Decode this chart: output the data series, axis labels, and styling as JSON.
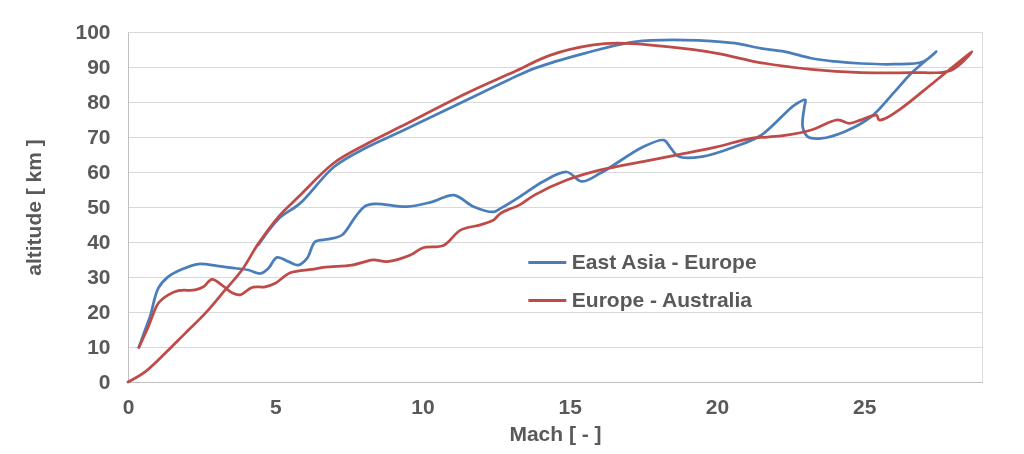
{
  "chart_data": {
    "type": "line",
    "xlabel": "Mach [ - ]",
    "ylabel": "altitude [ km ]",
    "xlim": [
      0,
      29
    ],
    "xticks": [
      0,
      5,
      10,
      15,
      20,
      25
    ],
    "ylim": [
      0,
      100
    ],
    "yticks": [
      0,
      10,
      20,
      30,
      40,
      50,
      60,
      70,
      80,
      90,
      100
    ],
    "grid": "y",
    "legend": "bottom right",
    "series": [
      {
        "name": "East Asia - Europe",
        "color": "#4a7ebb",
        "x": [
          4.43,
          5.11,
          5.85,
          7.0,
          8.1,
          9.25,
          11.5,
          13.2,
          13.8,
          15.5,
          17.2,
          18.9,
          20.6,
          21.5,
          22.3,
          23.2,
          24.0,
          24.9,
          26.0,
          27.0,
          27.45,
          26.6,
          26.03,
          25.24,
          24.33,
          23.54,
          23.08,
          22.91,
          22.97,
          23.0,
          22.63,
          21.5,
          20.6,
          19.5,
          18.7,
          18.4,
          18.2,
          17.5,
          16.05,
          15.4,
          14.9,
          14.1,
          13.3,
          12.65,
          12.42,
          11.74,
          11.06,
          10.3,
          9.48,
          8.4,
          8.06,
          7.72,
          7.27,
          6.81,
          6.36,
          6.08,
          5.79,
          5.45,
          5.06,
          4.77,
          4.49,
          4.09,
          3.64,
          3.07,
          2.39,
          1.83,
          1.37,
          1.03,
          0.75,
          0.58,
          0.37
        ],
        "values": [
          39.2,
          46.6,
          51.1,
          61.5,
          67,
          71.5,
          80.6,
          87.4,
          89.6,
          93.9,
          97.2,
          97.7,
          96.8,
          95.3,
          94.4,
          92.5,
          91.6,
          91.0,
          90.8,
          91.5,
          94.4,
          88.2,
          82.9,
          75.8,
          71.5,
          69.6,
          70.1,
          72.9,
          78.7,
          80.6,
          79.1,
          70.5,
          67.2,
          64.4,
          64.4,
          67.2,
          69.1,
          67.2,
          59.7,
          57.3,
          60.0,
          57.3,
          52.9,
          49.6,
          48.6,
          50.1,
          53.4,
          51.4,
          50.1,
          50.9,
          50.3,
          47.2,
          42,
          40.8,
          40.1,
          35.3,
          33.4,
          34.4,
          35.6,
          32.5,
          31.0,
          32.0,
          32.5,
          33.1,
          33.7,
          32.2,
          30.1,
          26.8,
          18.7,
          14.9,
          9.9
        ]
      },
      {
        "name": "Europe - Australia",
        "color": "#be4b48",
        "x": [
          0,
          0.58,
          1.26,
          1.94,
          2.62,
          3.3,
          3.87,
          4.43,
          5.11,
          5.79,
          6.98,
          8.1,
          9.25,
          11.5,
          13.1,
          14.35,
          15.8,
          16.6,
          18.3,
          20.0,
          21.5,
          23.2,
          24.9,
          26.6,
          27.96,
          28.66,
          27.39,
          26.26,
          25.69,
          25.5,
          25.42,
          24.9,
          24.5,
          24.1,
          23.2,
          22.18,
          21.16,
          20.0,
          18.9,
          17.75,
          16.05,
          14.9,
          13.8,
          13.3,
          12.65,
          12.42,
          11.97,
          11.29,
          10.73,
          10.0,
          9.59,
          8.8,
          8.34,
          8.06,
          7.61,
          6.7,
          6.25,
          5.51,
          5.0,
          4.66,
          4.21,
          3.81,
          3.53,
          3.19,
          2.85,
          2.56,
          2.28,
          1.71,
          1.37,
          1.03,
          0.69,
          0.37
        ],
        "values": [
          0,
          2.9,
          8.2,
          13.9,
          19.6,
          26.3,
          32,
          39.6,
          47.2,
          52.9,
          62.5,
          68,
          72.9,
          82.5,
          88.6,
          93.4,
          96.3,
          96.8,
          95.8,
          93.9,
          91.2,
          89.3,
          88.4,
          88.4,
          89.1,
          94.4,
          85.8,
          78.2,
          75.2,
          74.9,
          76.2,
          74.9,
          73.9,
          74.9,
          72,
          70.3,
          69.6,
          67.2,
          65.3,
          63.4,
          60.6,
          57.7,
          53.4,
          50.6,
          48.2,
          46.3,
          44.9,
          43.4,
          39.1,
          38.3,
          36.3,
          34.4,
          34.9,
          34.4,
          33.4,
          32.8,
          32.2,
          31.2,
          28.2,
          27.2,
          27.0,
          24.9,
          25.5,
          27.7,
          29.3,
          27.2,
          26.3,
          26.1,
          24.9,
          22.5,
          15.8,
          9.9
        ]
      }
    ]
  }
}
